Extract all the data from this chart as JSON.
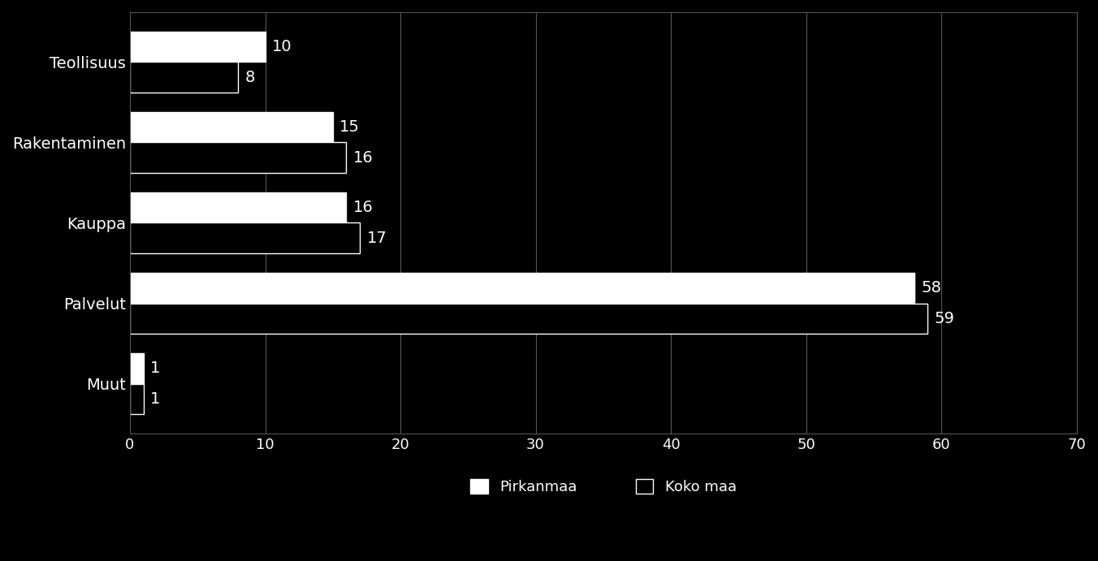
{
  "categories": [
    "Teollisuus",
    "Rakentaminen",
    "Kauppa",
    "Palvelut",
    "Muut"
  ],
  "pirkanmaa": [
    10,
    15,
    16,
    58,
    1
  ],
  "koko_maa": [
    8,
    16,
    17,
    59,
    1
  ],
  "bar_color_pirkanmaa": "#ffffff",
  "bar_color_koko_maa": "#000000",
  "bar_edge_koko_maa": "#ffffff",
  "background_color": "#000000",
  "text_color": "#ffffff",
  "grid_color": "#555555",
  "xlim": [
    0,
    70
  ],
  "xticks": [
    0,
    10,
    20,
    30,
    40,
    50,
    60,
    70
  ],
  "legend_pirkanmaa": "Pirkanmaa",
  "legend_koko_maa": "Koko maa",
  "bar_height": 0.38,
  "label_fontsize": 14,
  "tick_fontsize": 13,
  "legend_fontsize": 13,
  "category_fontsize": 14
}
